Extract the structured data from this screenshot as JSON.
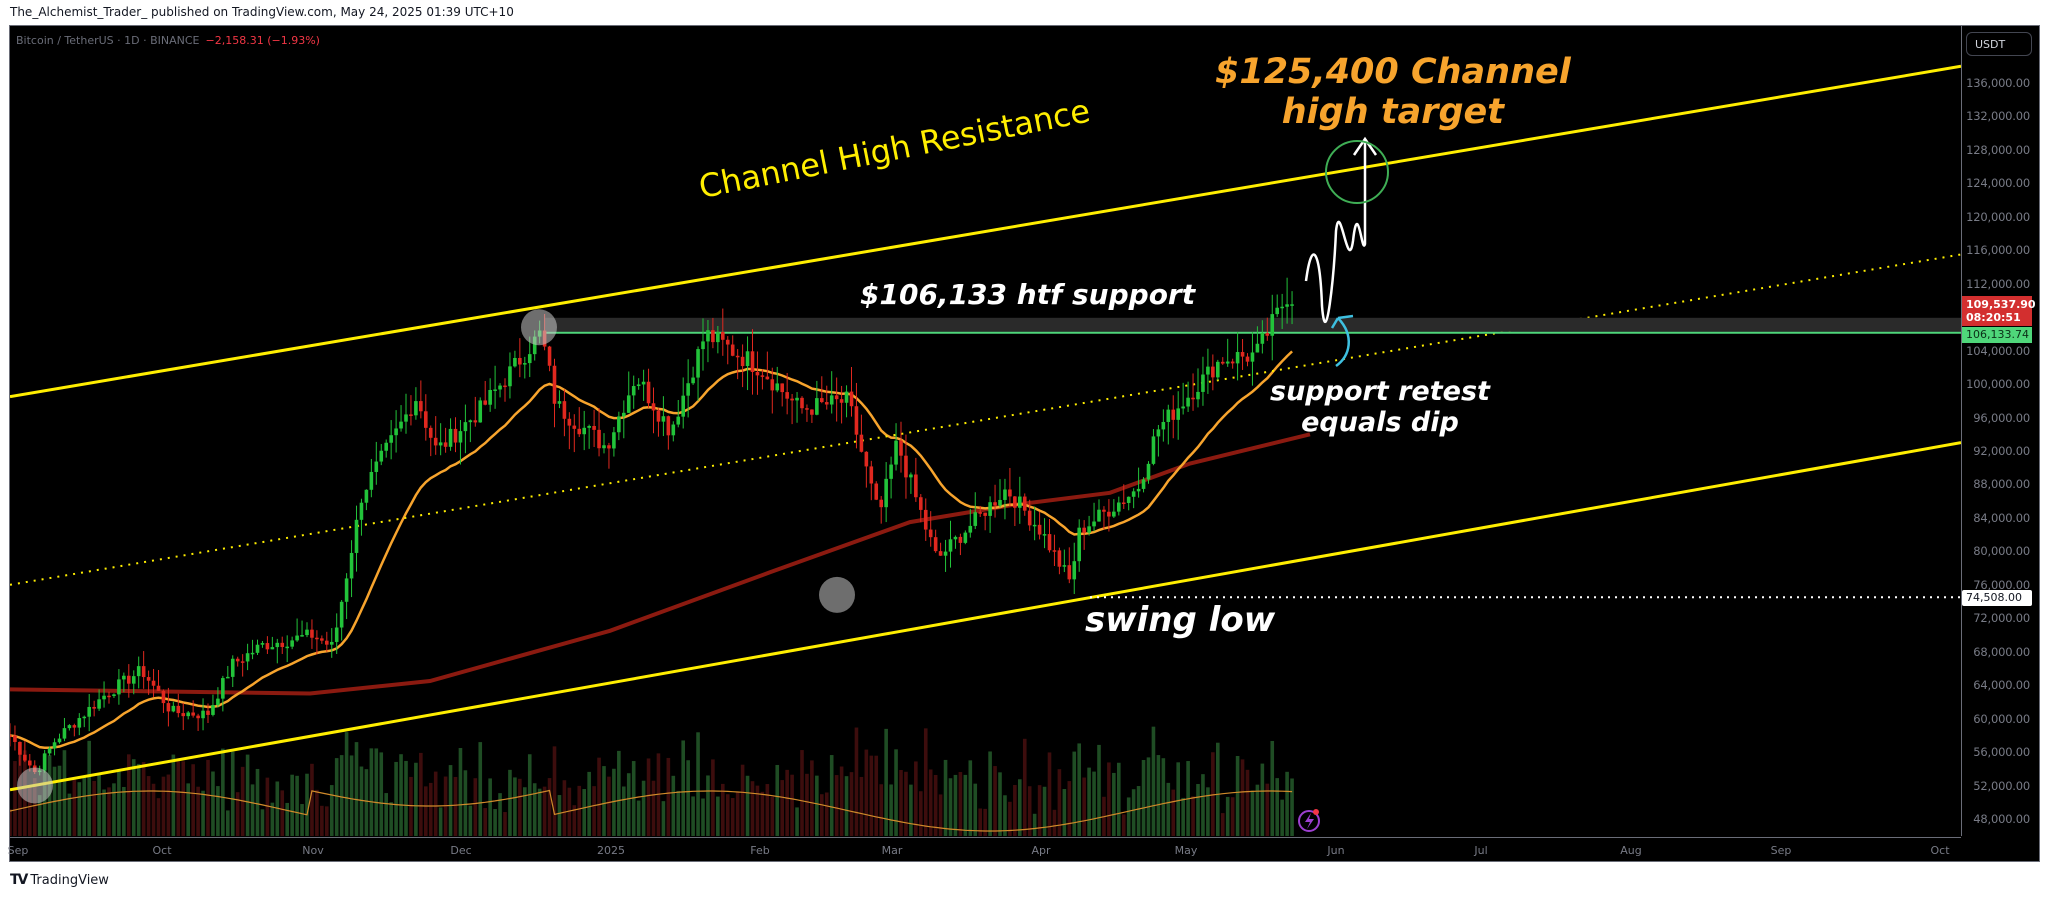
{
  "publish_bar": {
    "text": "The_Alchemist_Trader_ published on TradingView.com, May 24, 2025 01:39 UTC+10"
  },
  "symbol_header": {
    "symbol": "Bitcoin / TetherUS · 1D · BINANCE",
    "change": "−2,158.31 (−1.93%)"
  },
  "price_axis": {
    "currency": "USDT",
    "ticks": [
      "136,000.00",
      "132,000.00",
      "128,000.00",
      "124,000.00",
      "120,000.00",
      "116,000.00",
      "112,000.00",
      "104,000.00",
      "100,000.00",
      "96,000.00",
      "92,000.00",
      "88,000.00",
      "84,000.00",
      "80,000.00",
      "76,000.00",
      "72,000.00",
      "68,000.00",
      "64,000.00",
      "60,000.00",
      "56,000.00",
      "52,000.00",
      "48,000.00"
    ],
    "last_price": "109,537.90",
    "countdown": "08:20:51",
    "support_tag": "106,133.74",
    "low_tag": "74,508.00"
  },
  "time_axis": {
    "labels": [
      "Sep",
      "Oct",
      "Nov",
      "Dec",
      "2025",
      "Feb",
      "Mar",
      "Apr",
      "May",
      "Jun",
      "Jul",
      "Aug",
      "Sep",
      "Oct"
    ]
  },
  "annotations": {
    "target_line1": "$125,400 Channel",
    "target_line2": "high target",
    "channel_resistance": "Channel High Resistance",
    "htf_support": "$106,133 htf support",
    "retest_line1": "support retest",
    "retest_line2": "equals dip",
    "swing_low": "swing low"
  },
  "footer": {
    "logo": "TV",
    "brand": "TradingView"
  },
  "colors": {
    "background": "#000000",
    "bull": "#22c33a",
    "bear": "#e0281f",
    "channel": "#ffee00",
    "ema_fast": "#f7a42d",
    "ma_slow": "#8b1a10",
    "support_line": "#4fd67a",
    "target_circle": "#3fae55",
    "retest_arrow": "#3ec0e0",
    "last_price_tag": "#d32f2f"
  },
  "chart_data": {
    "type": "candlestick",
    "title": "Bitcoin / TetherUS · 1D · BINANCE",
    "xlabel": "",
    "ylabel": "USDT",
    "ylim": [
      46000,
      140000
    ],
    "x_ticks": [
      "Sep",
      "Oct",
      "Nov",
      "Dec",
      "2025",
      "Feb",
      "Mar",
      "Apr",
      "May",
      "Jun",
      "Jul",
      "Aug",
      "Sep",
      "Oct"
    ],
    "price_path": [
      {
        "date": "Sep 1",
        "close": 58000
      },
      {
        "date": "Sep 6",
        "close": 53500
      },
      {
        "date": "Sep 10",
        "close": 57500
      },
      {
        "date": "Sep 20",
        "close": 63000
      },
      {
        "date": "Sep 27",
        "close": 65800
      },
      {
        "date": "Oct 3",
        "close": 60800
      },
      {
        "date": "Oct 10",
        "close": 60500
      },
      {
        "date": "Oct 15",
        "close": 66500
      },
      {
        "date": "Oct 21",
        "close": 68800
      },
      {
        "date": "Oct 31",
        "close": 70000
      },
      {
        "date": "Nov 5",
        "close": 68500
      },
      {
        "date": "Nov 11",
        "close": 87000
      },
      {
        "date": "Nov 22",
        "close": 98500
      },
      {
        "date": "Nov 26",
        "close": 92000
      },
      {
        "date": "Dec 5",
        "close": 97000
      },
      {
        "date": "Dec 17",
        "close": 106133
      },
      {
        "date": "Dec 20",
        "close": 97500
      },
      {
        "date": "Dec 30",
        "close": 92500
      },
      {
        "date": "Jan 6",
        "close": 101000
      },
      {
        "date": "Jan 13",
        "close": 94500
      },
      {
        "date": "Jan 20",
        "close": 106000
      },
      {
        "date": "Jan 31",
        "close": 102000
      },
      {
        "date": "Feb 10",
        "close": 97000
      },
      {
        "date": "Feb 21",
        "close": 98000
      },
      {
        "date": "Feb 28",
        "close": 84000
      },
      {
        "date": "Mar 2",
        "close": 93000
      },
      {
        "date": "Mar 10",
        "close": 79000
      },
      {
        "date": "Mar 24",
        "close": 87500
      },
      {
        "date": "Mar 31",
        "close": 82500
      },
      {
        "date": "Apr 7",
        "close": 76300
      },
      {
        "date": "Apr 9",
        "close": 82500
      },
      {
        "date": "Apr 21",
        "close": 87500
      },
      {
        "date": "Apr 25",
        "close": 94500
      },
      {
        "date": "May 8",
        "close": 103000
      },
      {
        "date": "May 15",
        "close": 103500
      },
      {
        "date": "May 22",
        "close": 111500
      },
      {
        "date": "May 23",
        "close": 109537.9
      }
    ],
    "levels": {
      "htf_support": 106133.74,
      "swing_low": 74508,
      "channel_high_target": 125400,
      "last_price": 109537.9
    },
    "channel": {
      "upper": {
        "start": {
          "date": "Aug 29",
          "price": 98500
        },
        "end": {
          "date": "Oct",
          "price": 138000
        }
      },
      "mid_dotted": {
        "start": {
          "date": "Aug 29",
          "price": 76000
        },
        "end": {
          "date": "Oct",
          "price": 115500
        }
      },
      "lower": {
        "start": {
          "date": "Aug 29",
          "price": 51500
        },
        "end": {
          "date": "Oct",
          "price": 93000
        }
      }
    },
    "indicators": [
      "EMA fast (orange)",
      "MA 200 (dark red)",
      "Volume with volume MA"
    ],
    "grid": false,
    "legend": "none"
  }
}
